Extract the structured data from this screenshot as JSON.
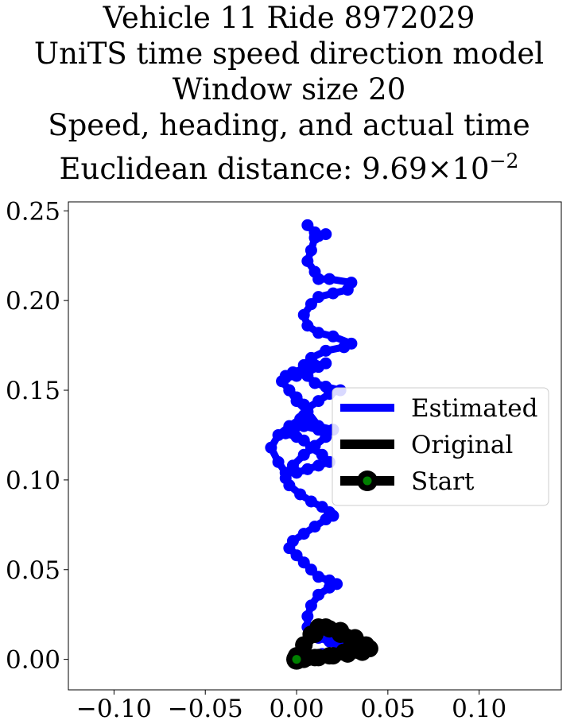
{
  "chart_data": {
    "type": "line",
    "title_lines": [
      "Vehicle 11 Ride 8972029",
      "UniTS time speed direction model",
      "Window size 20",
      "Speed, heading, and actual time"
    ],
    "distance_label": "Euclidean distance: ",
    "distance_mantissa": "9.69",
    "distance_times": "×",
    "distance_base": "10",
    "distance_exponent": "−2",
    "xlabel": "",
    "ylabel": "",
    "xlim": [
      -0.125,
      0.145
    ],
    "ylim": [
      -0.017,
      0.255
    ],
    "x_ticks": [
      -0.1,
      -0.05,
      0.0,
      0.05,
      0.1
    ],
    "x_tick_labels": [
      "−0.10",
      "−0.05",
      "0.00",
      "0.05",
      "0.10"
    ],
    "y_ticks": [
      0.0,
      0.05,
      0.1,
      0.15,
      0.2,
      0.25
    ],
    "y_tick_labels": [
      "0.00",
      "0.05",
      "0.10",
      "0.15",
      "0.20",
      "0.25"
    ],
    "grid": false,
    "legend_position": "center-right",
    "series": [
      {
        "name": "Estimated",
        "color": "#0000ff",
        "x": [
          0.006,
          0.01,
          0.012,
          0.016,
          0.01,
          0.008,
          0.006,
          0.01,
          0.012,
          0.018,
          0.03,
          0.028,
          0.02,
          0.012,
          0.008,
          0.004,
          0.006,
          0.012,
          0.02,
          0.03,
          0.026,
          0.016,
          0.008,
          0.004,
          0.006,
          0.01,
          0.016,
          0.024,
          0.018,
          0.012,
          0.006,
          0.004,
          0.008,
          0.012,
          0.02,
          0.012,
          0.004,
          0.0,
          -0.004,
          -0.006,
          0.0,
          0.004,
          0.008,
          0.014,
          0.018,
          0.012,
          0.006,
          0.0,
          -0.006,
          -0.01,
          -0.014,
          -0.01,
          -0.004,
          0.002,
          0.006,
          0.004,
          0.0,
          -0.004,
          -0.008,
          -0.006,
          -0.002,
          0.004,
          0.01,
          0.016,
          0.012,
          0.006,
          0.0,
          -0.006,
          -0.008,
          -0.004,
          0.0,
          0.006,
          0.012,
          0.016,
          0.01,
          0.004,
          -0.002,
          -0.006,
          -0.004,
          0.002,
          0.008,
          0.014,
          0.018,
          0.02,
          0.016,
          0.01,
          0.004,
          -0.002,
          -0.004,
          0.0,
          0.004,
          0.008,
          0.012,
          0.018,
          0.022,
          0.018,
          0.012,
          0.008,
          0.006,
          0.006,
          0.008,
          0.012,
          0.018,
          0.025,
          0.022,
          0.014,
          0.008,
          0.004
        ],
        "y": [
          0.242,
          0.238,
          0.236,
          0.237,
          0.235,
          0.228,
          0.222,
          0.216,
          0.212,
          0.212,
          0.21,
          0.206,
          0.204,
          0.202,
          0.198,
          0.192,
          0.186,
          0.182,
          0.18,
          0.176,
          0.174,
          0.172,
          0.168,
          0.164,
          0.158,
          0.154,
          0.152,
          0.15,
          0.148,
          0.144,
          0.14,
          0.136,
          0.132,
          0.13,
          0.128,
          0.128,
          0.13,
          0.13,
          0.128,
          0.126,
          0.124,
          0.122,
          0.118,
          0.114,
          0.11,
          0.108,
          0.106,
          0.104,
          0.104,
          0.11,
          0.118,
          0.125,
          0.13,
          0.134,
          0.138,
          0.142,
          0.146,
          0.15,
          0.155,
          0.158,
          0.16,
          0.162,
          0.164,
          0.165,
          0.163,
          0.16,
          0.158,
          0.157,
          0.155,
          0.15,
          0.144,
          0.138,
          0.13,
          0.124,
          0.119,
          0.114,
          0.108,
          0.101,
          0.097,
          0.092,
          0.088,
          0.085,
          0.082,
          0.08,
          0.078,
          0.074,
          0.07,
          0.066,
          0.062,
          0.058,
          0.054,
          0.05,
          0.046,
          0.044,
          0.042,
          0.04,
          0.036,
          0.03,
          0.024,
          0.018,
          0.014,
          0.012,
          0.01,
          0.008,
          0.005,
          0.003,
          0.002,
          0.0
        ]
      },
      {
        "name": "Original",
        "color": "#000000",
        "x": [
          0.0,
          0.004,
          0.008,
          0.012,
          0.018,
          0.024,
          0.03,
          0.036,
          0.04,
          0.036,
          0.028,
          0.02,
          0.012,
          0.006,
          0.002,
          0.0,
          0.004,
          0.01,
          0.016,
          0.024,
          0.032,
          0.038,
          0.034,
          0.026,
          0.018,
          0.01,
          0.004,
          0.0
        ],
        "y": [
          0.0,
          0.008,
          0.014,
          0.018,
          0.017,
          0.014,
          0.011,
          0.008,
          0.006,
          0.004,
          0.003,
          0.002,
          0.001,
          0.001,
          0.0,
          0.002,
          0.008,
          0.014,
          0.018,
          0.016,
          0.012,
          0.008,
          0.005,
          0.004,
          0.002,
          0.001,
          0.0,
          0.0
        ]
      }
    ],
    "start_point": {
      "name": "Start",
      "x": 0.0,
      "y": 0.0,
      "color": "#008000"
    },
    "legend": [
      "Estimated",
      "Original",
      "Start"
    ]
  }
}
